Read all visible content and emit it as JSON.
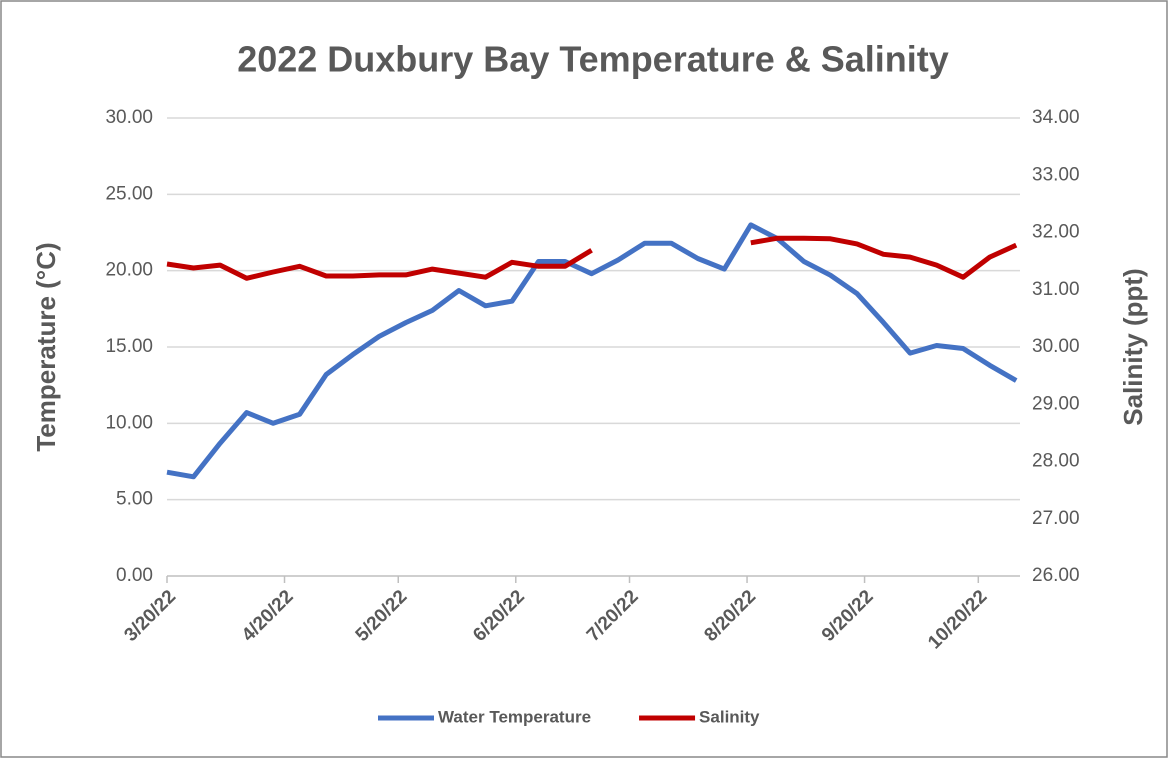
{
  "chart_data": {
    "type": "line",
    "title": "2022 Duxbury Bay Temperature & Salinity",
    "y_label": "Temperature (°C)",
    "y2_label": "Salinity (ppt)",
    "x": [
      "3/20/22",
      "3/27/22",
      "4/3/22",
      "4/10/22",
      "4/17/22",
      "4/24/22",
      "5/1/22",
      "5/8/22",
      "5/15/22",
      "5/22/22",
      "5/29/22",
      "6/5/22",
      "6/12/22",
      "6/19/22",
      "6/26/22",
      "7/3/22",
      "7/10/22",
      "7/17/22",
      "7/24/22",
      "7/31/22",
      "8/7/22",
      "8/14/22",
      "8/21/22",
      "8/28/22",
      "9/4/22",
      "9/11/22",
      "9/18/22",
      "9/25/22",
      "10/2/22",
      "10/9/22",
      "10/16/22",
      "10/23/22",
      "10/30/22"
    ],
    "series": [
      {
        "name": "Water Temperature",
        "color": "#4472c4",
        "axis": "y",
        "values": [
          6.8,
          6.5,
          8.7,
          10.7,
          10.0,
          10.6,
          13.2,
          14.5,
          15.7,
          16.6,
          17.4,
          18.7,
          17.7,
          18.0,
          20.6,
          20.6,
          19.8,
          20.7,
          21.8,
          21.8,
          20.8,
          20.1,
          23.0,
          22.1,
          20.6,
          19.7,
          18.5,
          16.6,
          14.6,
          15.1,
          14.9,
          13.8,
          12.8
        ]
      },
      {
        "name": "Salinity",
        "color": "#c00000",
        "axis": "y2",
        "values": [
          31.45,
          31.38,
          31.43,
          31.2,
          31.31,
          31.41,
          31.24,
          31.24,
          31.26,
          31.26,
          31.36,
          31.29,
          31.22,
          31.48,
          31.41,
          31.41,
          31.69,
          null,
          null,
          null,
          null,
          null,
          31.82,
          31.9,
          31.9,
          31.89,
          31.8,
          31.62,
          31.57,
          31.43,
          31.22,
          31.57,
          31.78
        ]
      }
    ],
    "xlim": [
      "3/20/22",
      "10/31/22"
    ],
    "xticks": [
      "3/20/22",
      "4/20/22",
      "5/20/22",
      "6/20/22",
      "7/20/22",
      "8/20/22",
      "9/20/22",
      "10/20/22"
    ],
    "ylim": [
      0,
      30
    ],
    "yticks": [
      {
        "value": 0,
        "label": "0.00"
      },
      {
        "value": 5,
        "label": "5.00"
      },
      {
        "value": 10,
        "label": "10.00"
      },
      {
        "value": 15,
        "label": "15.00"
      },
      {
        "value": 20,
        "label": "20.00"
      },
      {
        "value": 25,
        "label": "25.00"
      },
      {
        "value": 30,
        "label": "30.00"
      }
    ],
    "y2lim": [
      26,
      34
    ],
    "y2ticks": [
      {
        "value": 26,
        "label": "26.00"
      },
      {
        "value": 27,
        "label": "27.00"
      },
      {
        "value": 28,
        "label": "28.00"
      },
      {
        "value": 29,
        "label": "29.00"
      },
      {
        "value": 30,
        "label": "30.00"
      },
      {
        "value": 31,
        "label": "31.00"
      },
      {
        "value": 32,
        "label": "32.00"
      },
      {
        "value": 33,
        "label": "33.00"
      },
      {
        "value": 34,
        "label": "34.00"
      }
    ],
    "grid": true,
    "legend": "bottom"
  }
}
